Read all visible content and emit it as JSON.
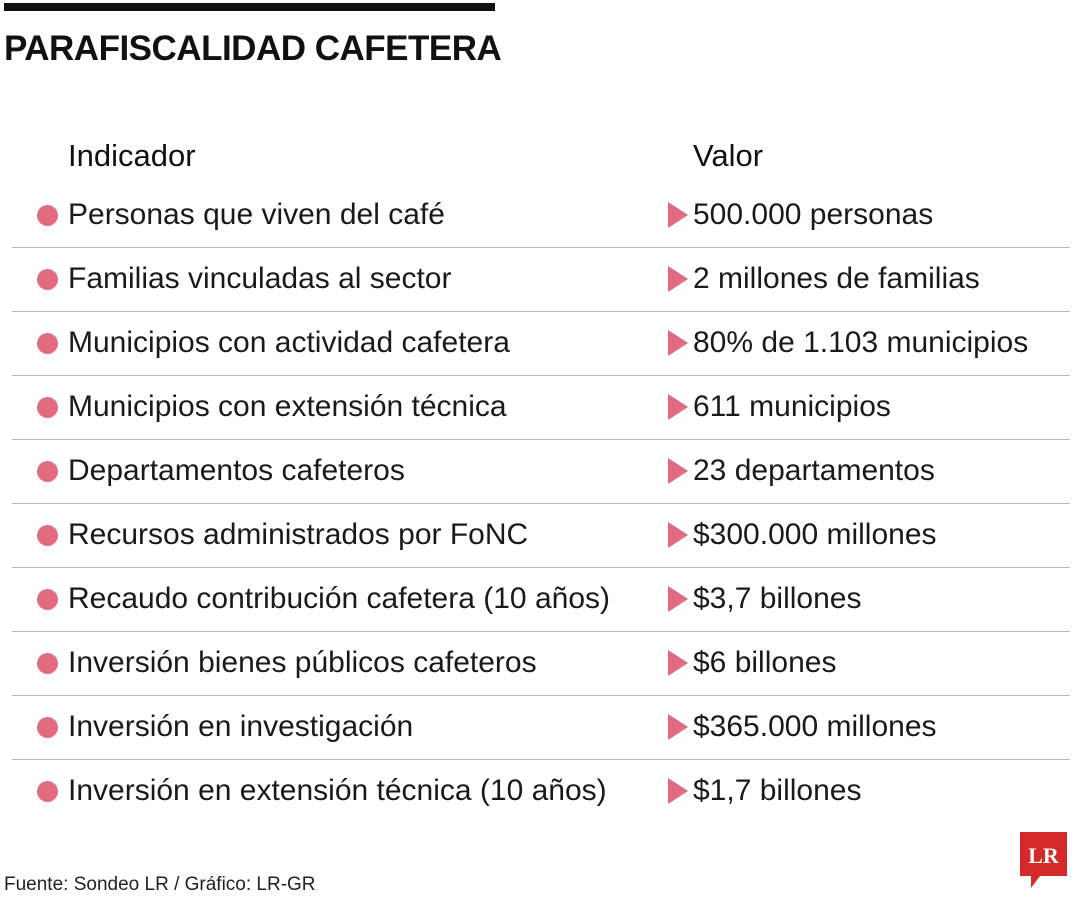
{
  "title": "PARAFISCALIDAD CAFETERA",
  "header": {
    "indicator": "Indicador",
    "value": "Valor"
  },
  "rows": [
    {
      "indicator": "Personas que viven del café",
      "value": "500.000 personas"
    },
    {
      "indicator": "Familias vinculadas al sector",
      "value": "2 millones de familias"
    },
    {
      "indicator": "Municipios con actividad cafetera",
      "value": "80% de 1.103 municipios"
    },
    {
      "indicator": "Municipios con extensión técnica",
      "value": "611 municipios"
    },
    {
      "indicator": "Departamentos cafeteros",
      "value": "23 departamentos"
    },
    {
      "indicator": "Recursos administrados por FoNC",
      "value": "$300.000 millones"
    },
    {
      "indicator": "Recaudo contribución cafetera (10 años)",
      "value": "$3,7 billones"
    },
    {
      "indicator": "Inversión bienes públicos cafeteros",
      "value": "$6 billones"
    },
    {
      "indicator": "Inversión en investigación",
      "value": "$365.000 millones"
    },
    {
      "indicator": "Inversión en extensión técnica (10 años)",
      "value": "$1,7 billones"
    }
  ],
  "source": "Fuente: Sondeo LR / Gráfico: LR-GR",
  "logo": {
    "text": "LR",
    "color": "#d62a2a"
  },
  "colors": {
    "accent": "#e36b80",
    "rule": "#111111",
    "divider": "#b8b8b8"
  }
}
